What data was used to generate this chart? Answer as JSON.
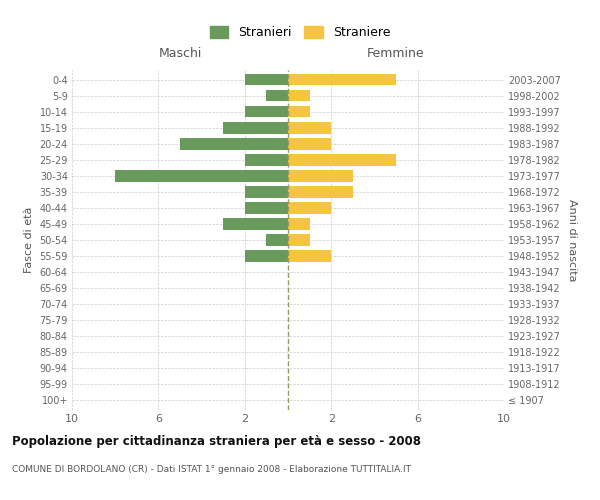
{
  "age_groups": [
    "100+",
    "95-99",
    "90-94",
    "85-89",
    "80-84",
    "75-79",
    "70-74",
    "65-69",
    "60-64",
    "55-59",
    "50-54",
    "45-49",
    "40-44",
    "35-39",
    "30-34",
    "25-29",
    "20-24",
    "15-19",
    "10-14",
    "5-9",
    "0-4"
  ],
  "birth_years": [
    "≤ 1907",
    "1908-1912",
    "1913-1917",
    "1918-1922",
    "1923-1927",
    "1928-1932",
    "1933-1937",
    "1938-1942",
    "1943-1947",
    "1948-1952",
    "1953-1957",
    "1958-1962",
    "1963-1967",
    "1968-1972",
    "1973-1977",
    "1978-1982",
    "1983-1987",
    "1988-1992",
    "1993-1997",
    "1998-2002",
    "2003-2007"
  ],
  "stranieri": [
    0,
    0,
    0,
    0,
    0,
    0,
    0,
    0,
    0,
    2,
    1,
    3,
    2,
    2,
    8,
    2,
    5,
    3,
    2,
    1,
    2
  ],
  "straniere": [
    0,
    0,
    0,
    0,
    0,
    0,
    0,
    0,
    0,
    2,
    1,
    1,
    2,
    3,
    3,
    5,
    2,
    2,
    1,
    1,
    5
  ],
  "stranieri_color": "#6a9a5b",
  "straniere_color": "#f5c542",
  "xlim": 10,
  "title": "Popolazione per cittadinanza straniera per età e sesso - 2008",
  "subtitle": "COMUNE DI BORDOLANO (CR) - Dati ISTAT 1° gennaio 2008 - Elaborazione TUTTITALIA.IT",
  "ylabel_left": "Fasce di età",
  "ylabel_right": "Anni di nascita",
  "legend_stranieri": "Stranieri",
  "legend_straniere": "Straniere",
  "maschi_label": "Maschi",
  "femmine_label": "Femmine",
  "bg_color": "#ffffff",
  "grid_color": "#cccccc",
  "dashed_line_color": "#999966"
}
